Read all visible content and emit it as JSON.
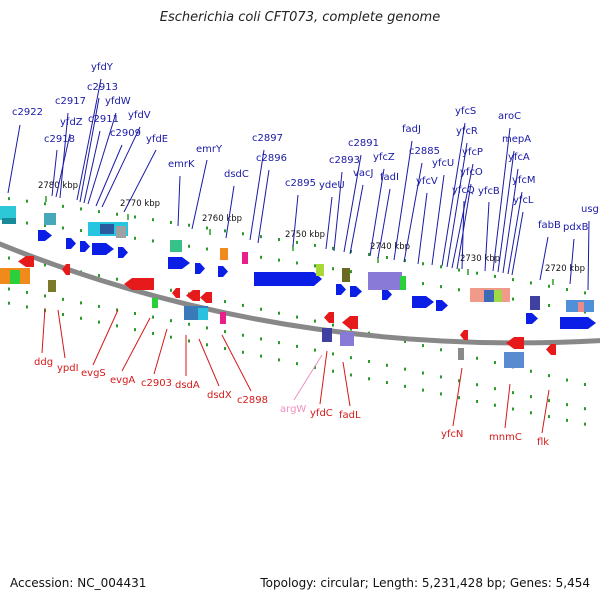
{
  "title": "Escherichia coli CFT073, complete genome",
  "footer": {
    "accession": "Accession: NC_004431",
    "summary": "Topology: circular; Length: 5,231,428 bp; Genes: 5,454"
  },
  "colors": {
    "top_labels": "#1a1aa6",
    "bottom_labels": "#d41a1a",
    "rna_label": "#f090c0",
    "backbone": "#888888",
    "forward_gene": "#0a1ee6",
    "reverse_gene": "#e61a1a",
    "tick": "#2a9a2a"
  },
  "ticks": [
    {
      "label": "2780 kbp",
      "kbp": 2780
    },
    {
      "label": "2770 kbp",
      "kbp": 2770
    },
    {
      "label": "2760 kbp",
      "kbp": 2760
    },
    {
      "label": "2750 kbp",
      "kbp": 2750
    },
    {
      "label": "2740 kbp",
      "kbp": 2740
    },
    {
      "label": "2730 kbp",
      "kbp": 2730
    },
    {
      "label": "2720 kbp",
      "kbp": 2720
    }
  ],
  "top_genes": [
    "c2922",
    "yfdY",
    "c2913",
    "c2917",
    "yfdW",
    "yfdZ",
    "c2911",
    "c2918",
    "yfdV",
    "c2909",
    "yfdE",
    "emrK",
    "emrY",
    "dsdC",
    "c2897",
    "c2896",
    "c2895",
    "ydeU",
    "c2893",
    "c2891",
    "vacJ",
    "yfcZ",
    "fadI",
    "fadJ",
    "c2885",
    "yfcV",
    "yfcU",
    "yfcS",
    "yfcR",
    "yfcP",
    "yfcO",
    "yfcQ",
    "yfcB",
    "aroC",
    "mepA",
    "yfcA",
    "yfcM",
    "yfcL",
    "fabB",
    "pdxB",
    "usg"
  ],
  "bottom_genes": [
    "ddg",
    "ypdI",
    "evgS",
    "evgA",
    "c2903",
    "dsdA",
    "dsdX",
    "c2898",
    "argW",
    "yfdC",
    "fadL",
    "yfcN",
    "mnmC",
    "flk"
  ]
}
